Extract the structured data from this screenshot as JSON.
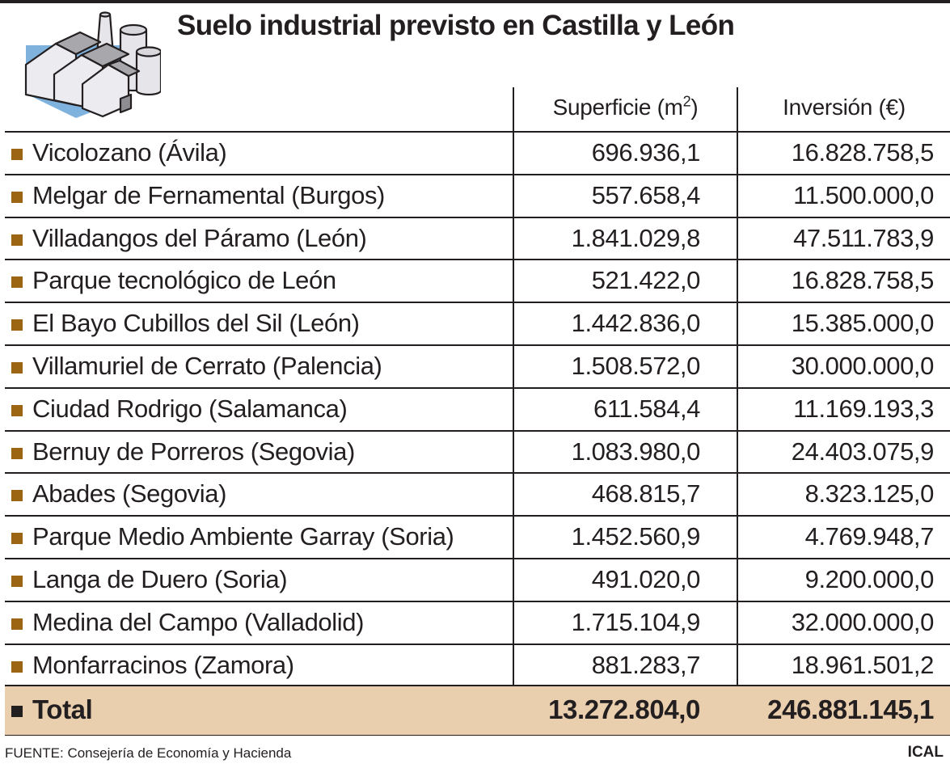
{
  "title": "Suelo industrial previsto en Castilla y León",
  "icon": "factory-icon",
  "colors": {
    "bullet": "#9c6514",
    "total_bg": "#e9cfae",
    "text": "#231f20"
  },
  "chart_data": {
    "type": "table",
    "title": "Suelo industrial previsto en Castilla y León",
    "columns": [
      "",
      "Superficie (m2)",
      "Inversión (€)"
    ],
    "column_headers": {
      "superficie": "Superficie (m",
      "superficie_sup": "2",
      "superficie_close": ")",
      "inversion": "Inversión (€)"
    },
    "rows": [
      {
        "name": "Vicolozano (Ávila)",
        "superficie": "696.936,1",
        "inversion": "16.828.758,5"
      },
      {
        "name": "Melgar de Fernamental (Burgos)",
        "superficie": "557.658,4",
        "inversion": "11.500.000,0"
      },
      {
        "name": "Villadangos del Páramo (León)",
        "superficie": "1.841.029,8",
        "inversion": "47.511.783,9"
      },
      {
        "name": "Parque tecnológico de León",
        "superficie": "521.422,0",
        "inversion": "16.828.758,5"
      },
      {
        "name": "El Bayo Cubillos del Sil (León)",
        "superficie": "1.442.836,0",
        "inversion": "15.385.000,0"
      },
      {
        "name": "Villamuriel de Cerrato (Palencia)",
        "superficie": "1.508.572,0",
        "inversion": "30.000.000,0"
      },
      {
        "name": "Ciudad Rodrigo (Salamanca)",
        "superficie": "611.584,4",
        "inversion": "11.169.193,3"
      },
      {
        "name": "Bernuy de Porreros (Segovia)",
        "superficie": "1.083.980,0",
        "inversion": "24.403.075,9"
      },
      {
        "name": "Abades (Segovia)",
        "superficie": "468.815,7",
        "inversion": "8.323.125,0"
      },
      {
        "name": "Parque Medio Ambiente Garray (Soria)",
        "superficie": "1.452.560,9",
        "inversion": "4.769.948,7"
      },
      {
        "name": "Langa de Duero (Soria)",
        "superficie": "491.020,0",
        "inversion": "9.200.000,0"
      },
      {
        "name": "Medina del Campo (Valladolid)",
        "superficie": "1.715.104,9",
        "inversion": "32.000.000,0"
      },
      {
        "name": "Monfarracinos (Zamora)",
        "superficie": "881.283,7",
        "inversion": "18.961.501,2"
      }
    ],
    "total": {
      "name": "Total",
      "superficie": "13.272.804,0",
      "inversion": "246.881.145,1"
    }
  },
  "footer": {
    "source": "FUENTE: Consejería de Economía y Hacienda",
    "credit": "ICAL"
  }
}
